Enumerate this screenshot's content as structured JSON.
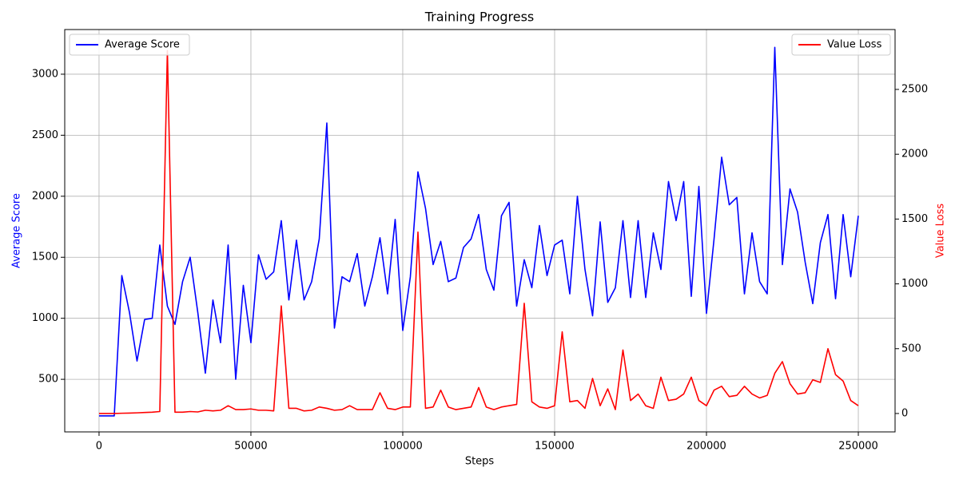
{
  "chart_data": {
    "type": "line",
    "title": "Training Progress",
    "xlabel": "Steps",
    "ylabel": "Average Score",
    "y2label": "Value Loss",
    "x": [
      0,
      2500,
      5000,
      7500,
      10000,
      12500,
      15000,
      17500,
      20000,
      22500,
      25000,
      27500,
      30000,
      32500,
      35000,
      37500,
      40000,
      42500,
      45000,
      47500,
      50000,
      52500,
      55000,
      57500,
      60000,
      62500,
      65000,
      67500,
      70000,
      72500,
      75000,
      77500,
      80000,
      82500,
      85000,
      87500,
      90000,
      92500,
      95000,
      97500,
      100000,
      102500,
      105000,
      107500,
      110000,
      112500,
      115000,
      117500,
      120000,
      122500,
      125000,
      127500,
      130000,
      132500,
      135000,
      137500,
      140000,
      142500,
      145000,
      147500,
      150000,
      152500,
      155000,
      157500,
      160000,
      162500,
      165000,
      167500,
      170000,
      172500,
      175000,
      177500,
      180000,
      182500,
      185000,
      187500,
      190000,
      192500,
      195000,
      197500,
      200000,
      202500,
      205000,
      207500,
      210000,
      212500,
      215000,
      217500,
      220000,
      222500,
      225000,
      227500,
      230000,
      232500,
      235000,
      237500,
      240000,
      242500,
      245000,
      247500,
      250000
    ],
    "series": [
      {
        "name": "Average Score",
        "color": "blue",
        "axis": "y",
        "values": [
          200,
          200,
          200,
          1350,
          1050,
          650,
          990,
          1000,
          1600,
          1100,
          950,
          1300,
          1500,
          1050,
          550,
          1150,
          800,
          1600,
          500,
          1270,
          800,
          1520,
          1320,
          1380,
          1800,
          1150,
          1640,
          1150,
          1300,
          1650,
          2600,
          920,
          1340,
          1300,
          1530,
          1100,
          1340,
          1660,
          1200,
          1810,
          900,
          1340,
          2200,
          1900,
          1440,
          1630,
          1300,
          1330,
          1580,
          1650,
          1850,
          1400,
          1230,
          1840,
          1950,
          1100,
          1480,
          1250,
          1760,
          1350,
          1600,
          1640,
          1200,
          2000,
          1400,
          1020,
          1790,
          1130,
          1250,
          1800,
          1170,
          1800,
          1170,
          1700,
          1400,
          2120,
          1800,
          2120,
          1180,
          2080,
          1040,
          1650,
          2320,
          1930,
          1990,
          1200,
          1700,
          1300,
          1200,
          3220,
          1440,
          2060,
          1870,
          1460,
          1120,
          1620,
          1850,
          1160,
          1850,
          1340,
          1840
        ]
      },
      {
        "name": "Value Loss",
        "color": "red",
        "axis": "y2",
        "values": [
          0,
          0,
          0,
          2,
          3,
          5,
          8,
          10,
          15,
          2800,
          10,
          10,
          15,
          12,
          25,
          20,
          25,
          60,
          30,
          30,
          35,
          25,
          25,
          20,
          830,
          40,
          40,
          20,
          25,
          50,
          40,
          25,
          30,
          60,
          30,
          30,
          30,
          160,
          40,
          30,
          50,
          50,
          1400,
          40,
          50,
          180,
          50,
          30,
          40,
          50,
          200,
          50,
          30,
          50,
          60,
          70,
          850,
          90,
          50,
          40,
          60,
          630,
          90,
          100,
          40,
          270,
          60,
          190,
          30,
          490,
          100,
          150,
          60,
          40,
          280,
          100,
          110,
          150,
          280,
          100,
          60,
          180,
          210,
          130,
          140,
          210,
          150,
          120,
          140,
          310,
          400,
          230,
          150,
          160,
          260,
          240,
          500,
          300,
          250,
          100,
          60
        ]
      }
    ],
    "xlim": [
      -11300,
      262100
    ],
    "ylim": [
      69,
      3366
    ],
    "y2lim": [
      -142,
      2962
    ],
    "xticks": [
      0,
      50000,
      100000,
      150000,
      200000,
      250000
    ],
    "yticks": [
      500,
      1000,
      1500,
      2000,
      2500,
      3000
    ],
    "y2ticks": [
      0,
      500,
      1000,
      1500,
      2000,
      2500
    ],
    "grid": true
  }
}
